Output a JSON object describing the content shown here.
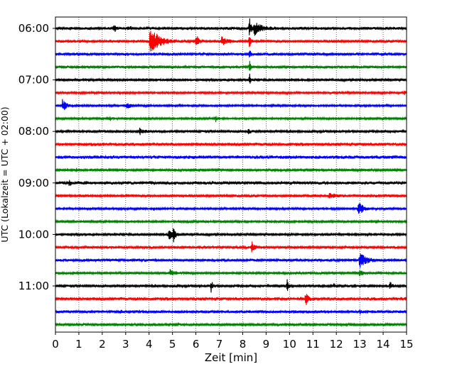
{
  "chart_data": {
    "type": "line",
    "title": "",
    "xlabel": "Zeit  [min]",
    "ylabel": "UTC (Lokalzeit = UTC + 02:00)",
    "xlim": [
      0,
      15
    ],
    "x_ticks": [
      0,
      1,
      2,
      3,
      4,
      5,
      6,
      7,
      8,
      9,
      10,
      11,
      12,
      13,
      14,
      15
    ],
    "x_tick_labels": [
      "0",
      "1",
      "2",
      "3",
      "4",
      "5",
      "6",
      "7",
      "8",
      "9",
      "10",
      "11",
      "12",
      "13",
      "14",
      "15"
    ],
    "y_ticks": [
      {
        "label": "06:00",
        "trace_index": 0
      },
      {
        "label": "07:00",
        "trace_index": 4
      },
      {
        "label": "08:00",
        "trace_index": 8
      },
      {
        "label": "09:00",
        "trace_index": 12
      },
      {
        "label": "10:00",
        "trace_index": 16
      },
      {
        "label": "11:00",
        "trace_index": 20
      }
    ],
    "grid": {
      "vertical": true,
      "style": "dotted"
    },
    "trace_interval_minutes": 15,
    "colors": [
      "#000000",
      "#ff0000",
      "#0000ff",
      "#008000"
    ],
    "series": [
      {
        "start": "06:00",
        "color": "#000000",
        "noise": 0.17,
        "events": [
          {
            "t": 2.5,
            "amp": 0.55,
            "dur": 0.08
          },
          {
            "t": 3.1,
            "amp": 0.35,
            "dur": 0.12
          },
          {
            "t": 8.3,
            "amp": 1.6,
            "dur": 0.05
          },
          {
            "t": 8.5,
            "amp": 0.9,
            "dur": 0.3
          }
        ]
      },
      {
        "start": "06:15",
        "color": "#ff0000",
        "noise": 0.17,
        "events": [
          {
            "t": 4.05,
            "amp": 1.9,
            "dur": 0.35
          },
          {
            "t": 6.0,
            "amp": 0.9,
            "dur": 0.12
          },
          {
            "t": 7.1,
            "amp": 0.6,
            "dur": 0.2
          },
          {
            "t": 8.3,
            "amp": 1.2,
            "dur": 0.04
          }
        ]
      },
      {
        "start": "06:30",
        "color": "#0000ff",
        "noise": 0.17,
        "events": [
          {
            "t": 8.3,
            "amp": 0.9,
            "dur": 0.04
          }
        ]
      },
      {
        "start": "06:45",
        "color": "#008000",
        "noise": 0.17,
        "events": [
          {
            "t": 8.3,
            "amp": 0.9,
            "dur": 0.04
          }
        ]
      },
      {
        "start": "07:00",
        "color": "#000000",
        "noise": 0.15,
        "events": [
          {
            "t": 8.3,
            "amp": 1.0,
            "dur": 0.04
          }
        ]
      },
      {
        "start": "07:15",
        "color": "#ff0000",
        "noise": 0.13,
        "events": [
          {
            "t": 14.9,
            "amp": 0.3,
            "dur": 0.1
          }
        ]
      },
      {
        "start": "07:30",
        "color": "#0000ff",
        "noise": 0.12,
        "events": [
          {
            "t": 0.3,
            "amp": 0.85,
            "dur": 0.15
          },
          {
            "t": 3.05,
            "amp": 0.6,
            "dur": 0.12
          }
        ]
      },
      {
        "start": "07:45",
        "color": "#008000",
        "noise": 0.12,
        "events": [
          {
            "t": 2.35,
            "amp": 0.3,
            "dur": 0.05
          },
          {
            "t": 6.85,
            "amp": 0.4,
            "dur": 0.05
          }
        ]
      },
      {
        "start": "08:00",
        "color": "#000000",
        "noise": 0.15,
        "events": [
          {
            "t": 3.6,
            "amp": 0.4,
            "dur": 0.15
          },
          {
            "t": 8.25,
            "amp": 0.3,
            "dur": 0.1
          }
        ]
      },
      {
        "start": "08:15",
        "color": "#ff0000",
        "noise": 0.2,
        "events": []
      },
      {
        "start": "08:30",
        "color": "#0000ff",
        "noise": 0.2,
        "events": []
      },
      {
        "start": "08:45",
        "color": "#008000",
        "noise": 0.14,
        "events": [
          {
            "t": 0.9,
            "amp": 0.3,
            "dur": 0.05
          }
        ]
      },
      {
        "start": "09:00",
        "color": "#000000",
        "noise": 0.2,
        "events": [
          {
            "t": 0.6,
            "amp": 0.45,
            "dur": 0.05
          }
        ]
      },
      {
        "start": "09:15",
        "color": "#ff0000",
        "noise": 0.17,
        "events": [
          {
            "t": 11.7,
            "amp": 0.3,
            "dur": 0.2
          }
        ]
      },
      {
        "start": "09:30",
        "color": "#0000ff",
        "noise": 0.12,
        "events": [
          {
            "t": 4.2,
            "amp": 0.3,
            "dur": 0.05
          },
          {
            "t": 12.95,
            "amp": 1.3,
            "dur": 0.15
          }
        ]
      },
      {
        "start": "09:45",
        "color": "#008000",
        "noise": 0.13,
        "events": []
      },
      {
        "start": "10:00",
        "color": "#000000",
        "noise": 0.15,
        "events": [
          {
            "t": 4.85,
            "amp": 0.6,
            "dur": 0.2
          },
          {
            "t": 5.05,
            "amp": 1.3,
            "dur": 0.05
          }
        ]
      },
      {
        "start": "10:15",
        "color": "#ff0000",
        "noise": 0.15,
        "events": [
          {
            "t": 8.4,
            "amp": 1.1,
            "dur": 0.08
          }
        ]
      },
      {
        "start": "10:30",
        "color": "#0000ff",
        "noise": 0.17,
        "events": [
          {
            "t": 13.0,
            "amp": 1.0,
            "dur": 0.25
          }
        ]
      },
      {
        "start": "10:45",
        "color": "#008000",
        "noise": 0.15,
        "events": [
          {
            "t": 4.9,
            "amp": 0.4,
            "dur": 0.2
          },
          {
            "t": 13.0,
            "amp": 0.45,
            "dur": 0.1
          }
        ]
      },
      {
        "start": "11:00",
        "color": "#000000",
        "noise": 0.15,
        "events": [
          {
            "t": 6.65,
            "amp": 0.9,
            "dur": 0.06
          },
          {
            "t": 9.9,
            "amp": 0.85,
            "dur": 0.06
          },
          {
            "t": 11.9,
            "amp": 0.35,
            "dur": 0.06
          },
          {
            "t": 14.3,
            "amp": 0.6,
            "dur": 0.08
          }
        ]
      },
      {
        "start": "11:15",
        "color": "#ff0000",
        "noise": 0.2,
        "events": [
          {
            "t": 10.7,
            "amp": 0.9,
            "dur": 0.08
          }
        ]
      },
      {
        "start": "11:30",
        "color": "#0000ff",
        "noise": 0.17,
        "events": [
          {
            "t": 2.8,
            "amp": 0.35,
            "dur": 0.05
          },
          {
            "t": 13.0,
            "amp": 0.3,
            "dur": 0.05
          }
        ]
      },
      {
        "start": "11:45",
        "color": "#008000",
        "noise": 0.15,
        "events": []
      }
    ]
  }
}
